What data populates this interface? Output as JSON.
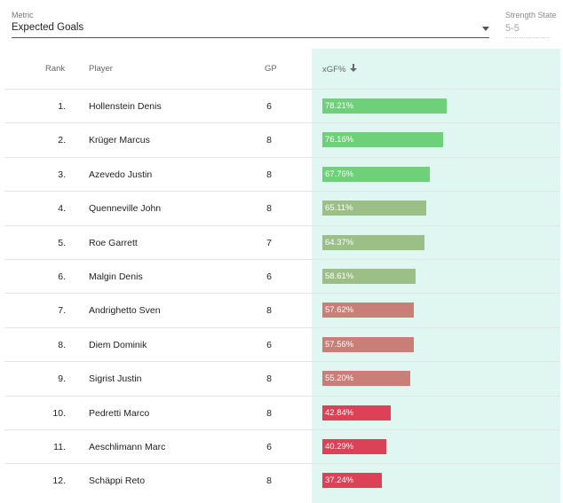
{
  "metric": {
    "label": "Metric",
    "value": "Expected Goals",
    "icon": "caret-down-icon"
  },
  "strength": {
    "label": "Strength State",
    "value": "5-5"
  },
  "table": {
    "headers": {
      "rank": "Rank",
      "player": "Player",
      "gp": "GP",
      "xgf": "xGF%",
      "sort_icon": "arrow-down-icon"
    },
    "scale_max_pct": 100,
    "rows": [
      {
        "rank": "1.",
        "player": "Hollenstein Denis",
        "gp": "6",
        "xgf": "78.21%",
        "value": 78.21,
        "color": "#6fd07a"
      },
      {
        "rank": "2.",
        "player": "Krüger Marcus",
        "gp": "8",
        "xgf": "76.16%",
        "value": 76.16,
        "color": "#6fd07a"
      },
      {
        "rank": "3.",
        "player": "Azevedo Justin",
        "gp": "8",
        "xgf": "67.76%",
        "value": 67.76,
        "color": "#6fd07a"
      },
      {
        "rank": "4.",
        "player": "Quenneville John",
        "gp": "8",
        "xgf": "65.11%",
        "value": 65.11,
        "color": "#9bbf86"
      },
      {
        "rank": "5.",
        "player": "Roe Garrett",
        "gp": "7",
        "xgf": "64.37%",
        "value": 64.37,
        "color": "#9bbf86"
      },
      {
        "rank": "6.",
        "player": "Malgin Denis",
        "gp": "6",
        "xgf": "58.61%",
        "value": 58.61,
        "color": "#9bbf86"
      },
      {
        "rank": "7.",
        "player": "Andrighetto Sven",
        "gp": "8",
        "xgf": "57.62%",
        "value": 57.62,
        "color": "#c97f78"
      },
      {
        "rank": "8.",
        "player": "Diem Dominik",
        "gp": "6",
        "xgf": "57.56%",
        "value": 57.56,
        "color": "#c97f78"
      },
      {
        "rank": "9.",
        "player": "Sigrist Justin",
        "gp": "8",
        "xgf": "55.20%",
        "value": 55.2,
        "color": "#c97f78"
      },
      {
        "rank": "10.",
        "player": "Pedretti Marco",
        "gp": "8",
        "xgf": "42.84%",
        "value": 42.84,
        "color": "#dd4157"
      },
      {
        "rank": "11.",
        "player": "Aeschlimann Marc",
        "gp": "6",
        "xgf": "40.29%",
        "value": 40.29,
        "color": "#dd4157"
      },
      {
        "rank": "12.",
        "player": "Schäppi Reto",
        "gp": "8",
        "xgf": "37.24%",
        "value": 37.24,
        "color": "#dd4157"
      }
    ]
  }
}
